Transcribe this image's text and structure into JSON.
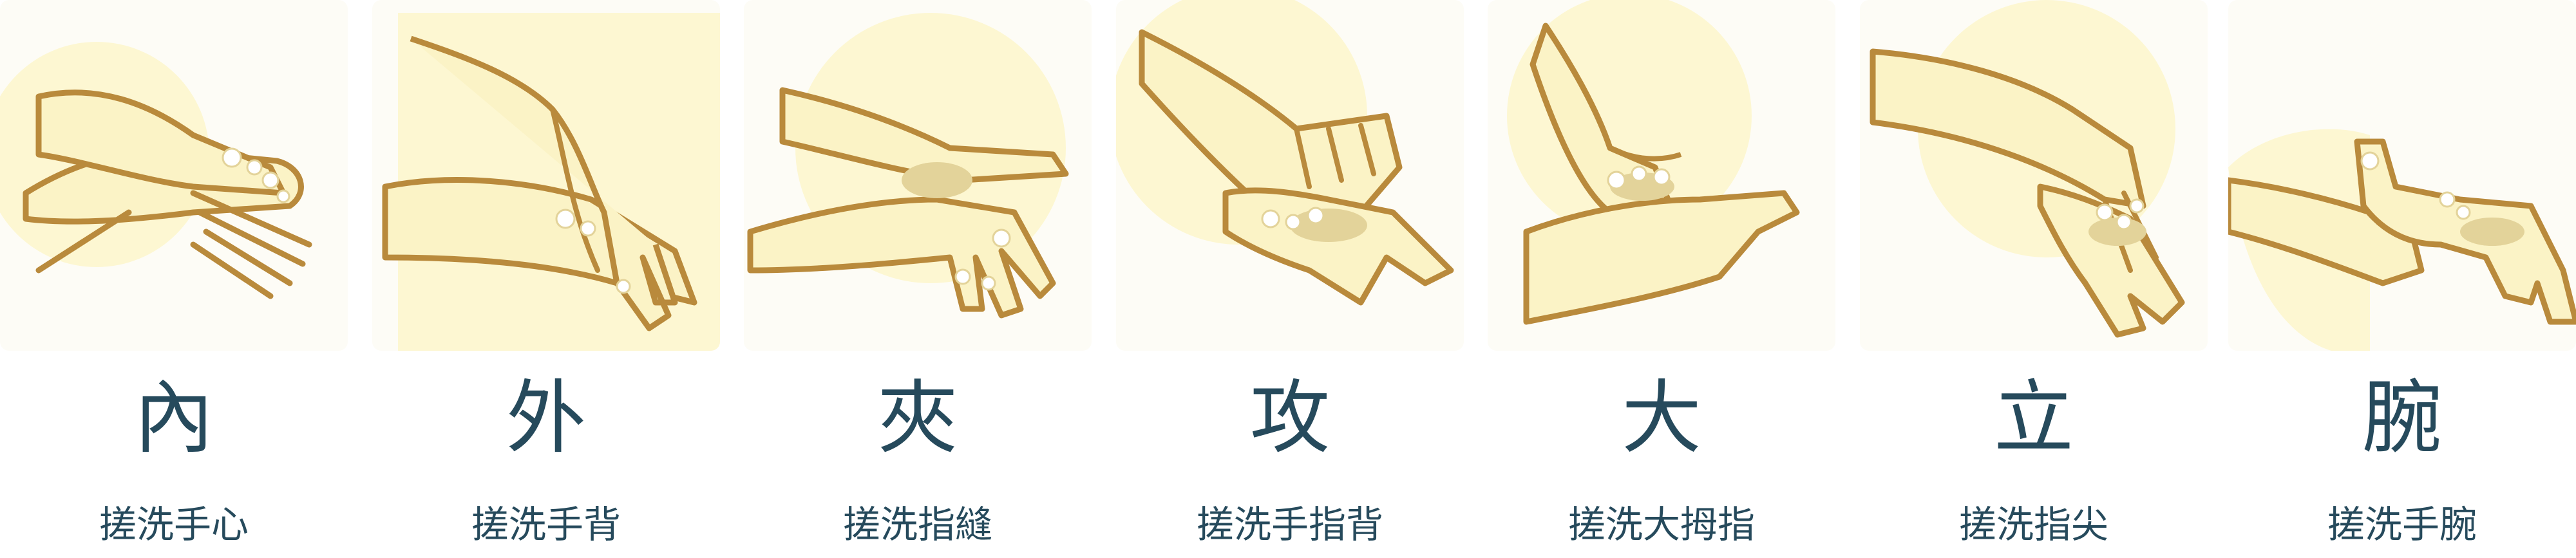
{
  "colors": {
    "skin": "#fbf3c6",
    "skin_shade": "#e3d39a",
    "outline": "#b98a3c",
    "backdrop": "#fdf7d2",
    "foam": "#ffffff",
    "text": "#264a5c"
  },
  "steps": [
    {
      "char": "內",
      "caption": "搓洗手心",
      "icon": "palms-rubbing-icon"
    },
    {
      "char": "外",
      "caption": "搓洗手背",
      "icon": "back-of-hand-icon"
    },
    {
      "char": "夾",
      "caption": "搓洗指縫",
      "icon": "interlaced-fingers-icon"
    },
    {
      "char": "攻",
      "caption": "搓洗手指背",
      "icon": "finger-backs-icon"
    },
    {
      "char": "大",
      "caption": "搓洗大拇指",
      "icon": "thumb-rub-icon"
    },
    {
      "char": "立",
      "caption": "搓洗指尖",
      "icon": "fingertips-icon"
    },
    {
      "char": "腕",
      "caption": "搓洗手腕",
      "icon": "wrist-rub-icon"
    }
  ]
}
